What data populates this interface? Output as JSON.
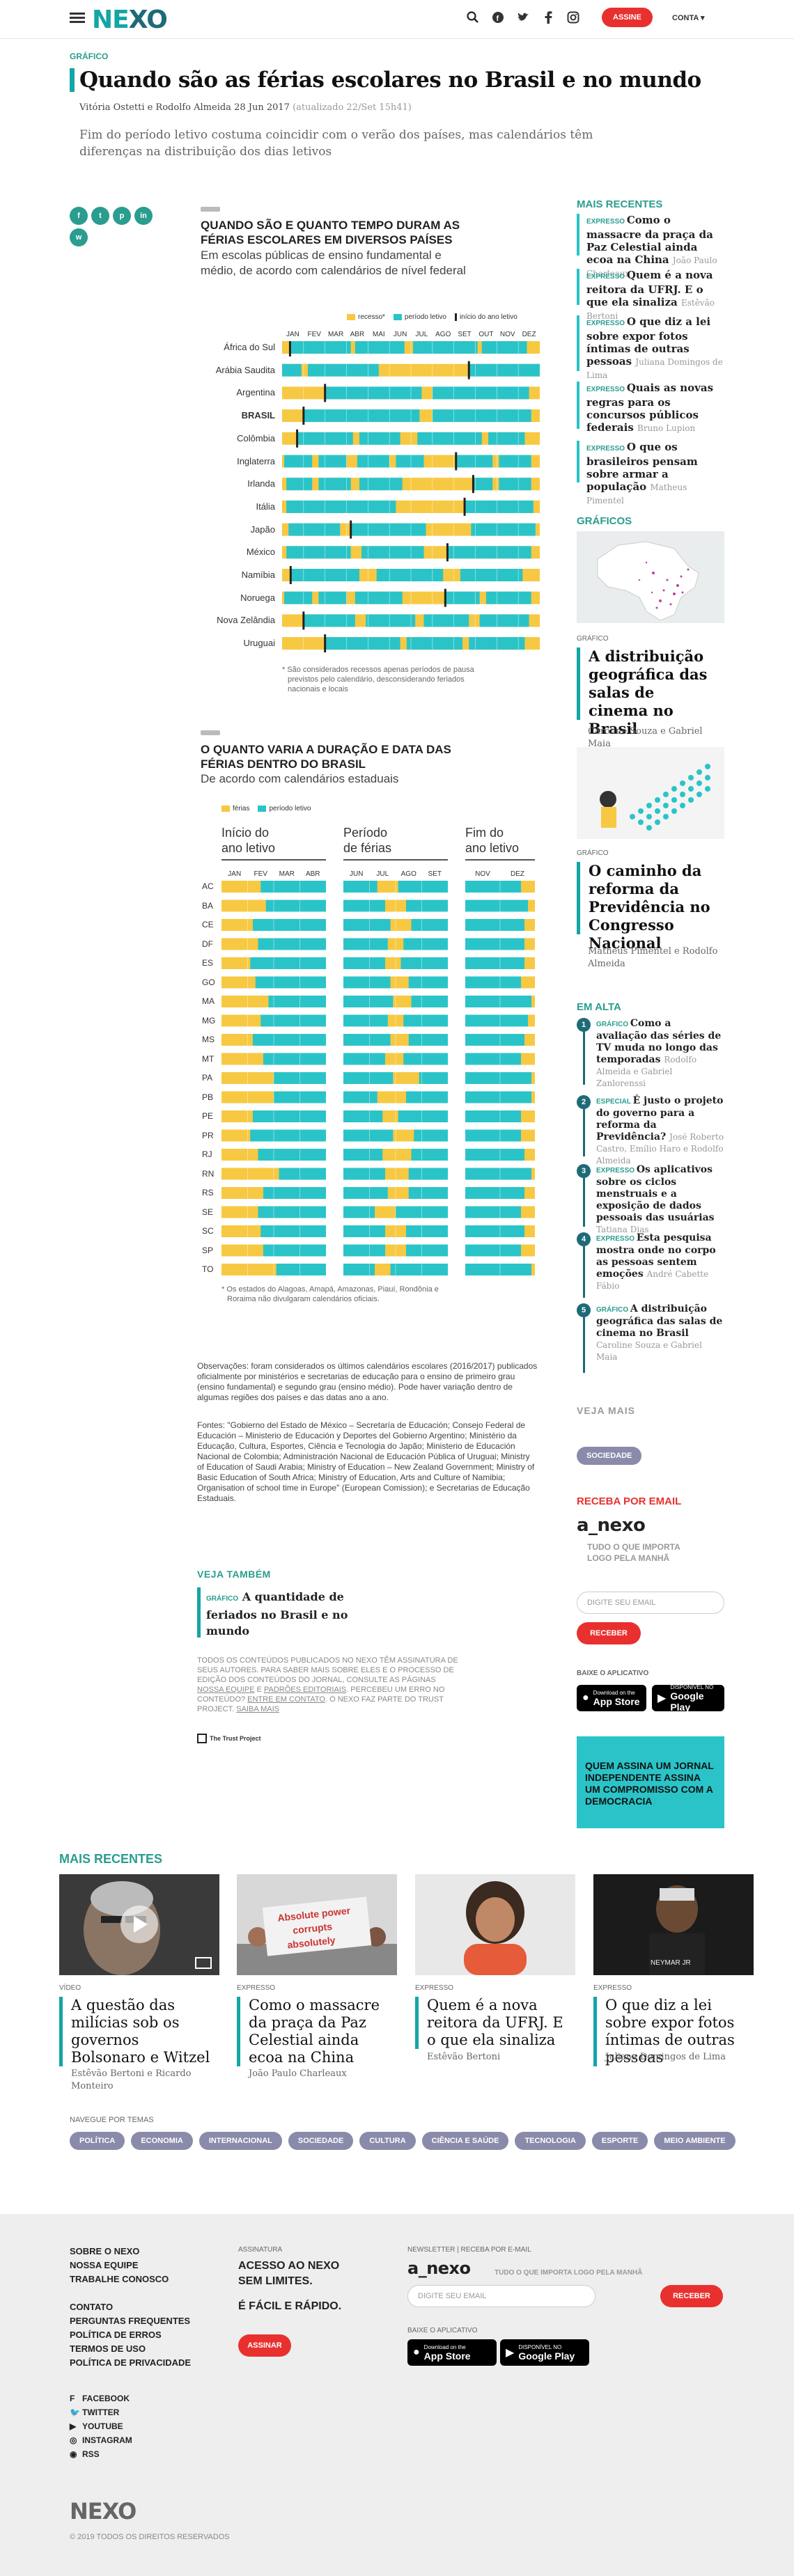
{
  "header": {
    "logo_left": "NE",
    "logo_right": "XO",
    "assine": "ASSINE",
    "conta": "CONTA",
    "icons": [
      "search-icon",
      "facebook-icon",
      "twitter-icon",
      "facebook-f-icon",
      "instagram-icon"
    ]
  },
  "article": {
    "kicker": "GRÁFICO",
    "title": "Quando são as férias escolares no Brasil e no mundo",
    "byline": "Vitória Ostetti e Rodolfo Almeida",
    "date": "28 Jun 2017",
    "updated": "(atualizado 22/Set 15h41)",
    "lead": "Fim do período letivo costuma coincidir com o verão dos países, mas calendários têm diferenças na distribuição dos dias letivos"
  },
  "share": [
    "f",
    "t",
    "p",
    "in",
    "w"
  ],
  "chart1": {
    "title_l1": "QUANDO SÃO E QUANTO TEMPO DURAM AS",
    "title_l2": "FÉRIAS ESCOLARES EM DIVERSOS PAÍSES",
    "sub_l1": "Em escolas públicas de ensino fundamental e",
    "sub_l2": "médio, de acordo com calendários de nível federal",
    "legend": [
      "recesso*",
      "período letivo",
      "início do ano letivo"
    ],
    "months": [
      "JAN",
      "FEV",
      "MAR",
      "ABR",
      "MAI",
      "JUN",
      "JUL",
      "AGO",
      "SET",
      "OUT",
      "NOV",
      "DEZ"
    ],
    "footnote_l1": "* São considerados recessos apenas períodos de pausa",
    "footnote_l2": "previstos pelo calendário, desconsiderando feriados",
    "footnote_l3": "nacionais e locais"
  },
  "chart_data": [
    {
      "type": "table",
      "title": "QUANDO SÃO E QUANTO TEMPO DURAM AS FÉRIAS ESCOLARES EM DIVERSOS PAÍSES",
      "subtitle": "Em escolas públicas de ensino fundamental e médio, de acordo com calendários de nível federal",
      "x": [
        "JAN",
        "FEV",
        "MAR",
        "ABR",
        "MAI",
        "JUN",
        "JUL",
        "AGO",
        "SET",
        "OUT",
        "NOV",
        "DEZ"
      ],
      "rows": [
        {
          "name": "África do Sul",
          "letivo": [
            [
              0.37,
              3.2
            ],
            [
              3.4,
              5.7
            ],
            [
              6.1,
              9.1
            ],
            [
              9.3,
              11.4
            ]
          ],
          "inicio": 0.37
        },
        {
          "name": "Arábia Saudita",
          "letivo": [
            [
              0,
              0.9
            ],
            [
              1.2,
              4.5
            ],
            [
              8.7,
              12
            ]
          ],
          "inicio": 8.7
        },
        {
          "name": "Argentina",
          "letivo": [
            [
              2.0,
              6.5
            ],
            [
              7.0,
              11.5
            ]
          ],
          "inicio": 2.0
        },
        {
          "name": "BRASIL",
          "letivo": [
            [
              1.0,
              6.4
            ],
            [
              7.0,
              11.6
            ]
          ],
          "inicio": 1.0
        },
        {
          "name": "Colômbia",
          "letivo": [
            [
              0.7,
              3.3
            ],
            [
              3.6,
              5.5
            ],
            [
              6.3,
              9.3
            ],
            [
              9.6,
              11.3
            ]
          ],
          "inicio": 0.7
        },
        {
          "name": "Inglaterra",
          "letivo": [
            [
              0.1,
              1.4
            ],
            [
              1.7,
              3.0
            ],
            [
              3.5,
              5.0
            ],
            [
              5.3,
              6.6
            ],
            [
              8.1,
              9.8
            ],
            [
              10.1,
              11.6
            ]
          ],
          "inicio": 8.1
        },
        {
          "name": "Irlanda",
          "letivo": [
            [
              0.2,
              1.4
            ],
            [
              1.7,
              3.2
            ],
            [
              3.6,
              5.6
            ],
            [
              8.9,
              9.8
            ],
            [
              10.1,
              11.6
            ]
          ],
          "inicio": 8.9
        },
        {
          "name": "Itália",
          "letivo": [
            [
              0.2,
              5.3
            ],
            [
              8.5,
              11.7
            ]
          ],
          "inicio": 8.5
        },
        {
          "name": "Japão",
          "letivo": [
            [
              0.3,
              2.7
            ],
            [
              3.2,
              6.7
            ],
            [
              8.8,
              11.8
            ]
          ],
          "inicio": 3.2
        },
        {
          "name": "México",
          "letivo": [
            [
              0.2,
              3.2
            ],
            [
              3.7,
              6.6
            ],
            [
              7.7,
              11.6
            ]
          ],
          "inicio": 7.7
        },
        {
          "name": "Namíbia",
          "letivo": [
            [
              0.4,
              3.6
            ],
            [
              4.4,
              7.5
            ],
            [
              8.3,
              11.2
            ]
          ],
          "inicio": 0.4
        },
        {
          "name": "Noruega",
          "letivo": [
            [
              0.1,
              1.4
            ],
            [
              1.7,
              3.0
            ],
            [
              3.4,
              5.6
            ],
            [
              7.6,
              9.2
            ],
            [
              9.5,
              11.6
            ]
          ],
          "inicio": 7.6
        },
        {
          "name": "Nova Zelândia",
          "letivo": [
            [
              1.0,
              3.4
            ],
            [
              3.9,
              6.2
            ],
            [
              6.6,
              8.7
            ],
            [
              9.2,
              11.5
            ]
          ],
          "inicio": 1.0
        },
        {
          "name": "Uruguai",
          "letivo": [
            [
              2.0,
              5.5
            ],
            [
              5.8,
              8.4
            ],
            [
              8.7,
              11.3
            ]
          ],
          "inicio": 2.0
        }
      ]
    },
    {
      "type": "table",
      "title": "O QUANTO VARIA A DURAÇÃO E DATA DAS FÉRIAS DENTRO DO BRASIL",
      "subtitle": "De acordo com calendários estaduais",
      "states": [
        "AC",
        "BA",
        "CE",
        "DF",
        "ES",
        "GO",
        "MA",
        "MG",
        "MS",
        "MT",
        "PA",
        "PB",
        "PE",
        "PR",
        "RJ",
        "RN",
        "RS",
        "SE",
        "SC",
        "SP",
        "TO"
      ],
      "inicio_start": [
        1.5,
        1.7,
        1.2,
        1.4,
        1.1,
        1.3,
        1.8,
        1.5,
        1.2,
        1.6,
        2.0,
        2.0,
        1.2,
        1.1,
        1.4,
        2.2,
        1.6,
        1.4,
        1.5,
        1.6,
        2.1
      ],
      "ferias_jul": [
        [
          6.3,
          7.1
        ],
        [
          6.6,
          7.4
        ],
        [
          6.8,
          7.6
        ],
        [
          6.7,
          7.3
        ],
        [
          6.6,
          7.2
        ],
        [
          6.8,
          7.5
        ],
        [
          6.9,
          7.6
        ],
        [
          6.7,
          7.3
        ],
        [
          6.8,
          7.5
        ],
        [
          6.6,
          7.3
        ],
        [
          6.9,
          7.9
        ],
        [
          6.3,
          7.4
        ],
        [
          6.5,
          7.1
        ],
        [
          6.9,
          7.7
        ],
        [
          6.5,
          7.6
        ],
        [
          6.6,
          7.5
        ],
        [
          6.7,
          7.5
        ],
        [
          6.2,
          7.0
        ],
        [
          6.6,
          7.4
        ],
        [
          6.6,
          7.4
        ],
        [
          6.2,
          6.8
        ]
      ],
      "fim": [
        11.6,
        11.8,
        11.7,
        11.7,
        11.7,
        11.6,
        11.9,
        11.8,
        11.7,
        11.6,
        11.9,
        11.9,
        11.6,
        11.6,
        11.7,
        11.9,
        11.7,
        11.6,
        11.7,
        11.6,
        11.9
      ]
    }
  ],
  "chart2": {
    "title_l1": "O QUANTO VARIA A DURAÇÃO E DATA DAS",
    "title_l2": "FÉRIAS DENTRO DO BRASIL",
    "sub": "De acordo com calendários estaduais",
    "legend": [
      "férias",
      "período letivo"
    ],
    "col1_l1": "Início do",
    "col1_l2": "ano letivo",
    "col2_l1": "Período",
    "col2_l2": "de férias",
    "col3_l1": "Fim do",
    "col3_l2": "ano letivo",
    "m1": [
      "JAN",
      "FEV",
      "MAR",
      "ABR"
    ],
    "m2": [
      "JUN",
      "JUL",
      "AGO",
      "SET"
    ],
    "m3": [
      "NOV",
      "DEZ"
    ],
    "footnote_l1": "* Os estados do Alagoas, Amapá, Amazonas, Piauí, Rondônia e",
    "footnote_l2": "Roraima não divulgaram calendários oficiais."
  },
  "notes": {
    "obs": "Observações: foram considerados os últimos calendários escolares (2016/2017) publicados oficialmente por ministérios e secretarias de educação para o ensino de primeiro grau (ensino fundamental) e segundo grau (ensino médio). Pode haver variação dentro de algumas regiões dos países e das datas ano a ano.",
    "fontes": "Fontes: \"Gobierno del Estado de México – Secretaría de Educación; Consejo Federal de Educación – Ministerio de Educación y Deportes del Gobierno Argentino; Ministério da Educação, Cultura, Esportes, Ciência e Tecnologia do Japão; Ministerio de Educación Nacional de Colombia; Administración Nacional de Educación Pública of Uruguai; Ministry of Education of Saudi Arabia; Ministry of Education – New Zealand Government; Ministry of Basic Education of South Africa; Ministry of Education, Arts and Culture of Namibia; Organisation of school time in Europe\" (European Comission); e Secretarias de Educação Estaduais."
  },
  "veja": {
    "title": "VEJA TAMBÉM",
    "tag": "GRÁFICO",
    "text": "A quantidade de feriados no Brasil e no mundo"
  },
  "legal": {
    "text": "TODOS OS CONTEÚDOS PUBLICADOS NO NEXO TÊM ASSINATURA DE SEUS AUTORES. PARA SABER MAIS SOBRE ELES E O PROCESSO DE EDIÇÃO DOS CONTEÚDOS DO JORNAL, CONSULTE AS PÁGINAS",
    "link1": "NOSSA EQUIPE",
    "e": "E",
    "link2": "PADRÕES EDITORIAIS",
    "text2": ". PERCEBEU UM ERRO NO CONTEÚDO?",
    "link3": "ENTRE EM CONTATO",
    "text3": ". O NEXO FAZ PARTE DO TRUST PROJECT.",
    "link4": "SAIBA MAIS",
    "trust": "The Trust Project"
  },
  "sidebar": {
    "mr_title": "MAIS RECENTES",
    "mr": [
      {
        "tag": "EXPRESSO",
        "t": "Como o massacre da praça da Paz Celestial ainda ecoa na China",
        "a": "João Paulo Charleaux"
      },
      {
        "tag": "EXPRESSO",
        "t": "Quem é a nova reitora da UFRJ. E o que ela sinaliza",
        "a": "Estêvão Bertoni"
      },
      {
        "tag": "EXPRESSO",
        "t": "O que diz a lei sobre expor fotos íntimas de outras pessoas",
        "a": "Juliana Domingos de Lima"
      },
      {
        "tag": "EXPRESSO",
        "t": "Quais as novas regras para os concursos públicos federais",
        "a": "Bruno Lupion"
      },
      {
        "tag": "EXPRESSO",
        "t": "O que os brasileiros pensam sobre armar a população",
        "a": "Matheus Pimentel"
      }
    ],
    "graf_title": "GRÁFICOS",
    "graf": [
      {
        "tag": "GRÁFICO",
        "t": "A distribuição geográfica das salas de cinema no Brasil",
        "a": "Caroline Souza e Gabriel Maia"
      },
      {
        "tag": "GRÁFICO",
        "t": "O caminho da reforma da Previdência no Congresso Nacional",
        "a": "Matheus Pimentel e Rodolfo Almeida"
      }
    ],
    "ea_title": "EM ALTA",
    "ea": [
      {
        "n": "1",
        "tag": "GRÁFICO",
        "t": "Como a avaliação das séries de TV muda no longo das temporadas",
        "a": "Rodolfo Almeida e Gabriel Zanlorenssi"
      },
      {
        "n": "2",
        "tag": "ESPECIAL",
        "t": "É justo o projeto do governo para a reforma da Previdência?",
        "a": "José Roberto Castro, Emílio Haro e Rodolfo Almeida"
      },
      {
        "n": "3",
        "tag": "EXPRESSO",
        "t": "Os aplicativos sobre os ciclos menstruais e a exposição de dados pessoais das usuárias",
        "a": "Tatiana Dias"
      },
      {
        "n": "4",
        "tag": "EXPRESSO",
        "t": "Esta pesquisa mostra onde no corpo as pessoas sentem emoções",
        "a": "André Cabette Fábio"
      },
      {
        "n": "5",
        "tag": "GRÁFICO",
        "t": "A distribuição geográfica das salas de cinema no Brasil",
        "a": "Caroline Souza e Gabriel Maia"
      }
    ],
    "vm_title": "VEJA MAIS",
    "vm_pill": "SOCIEDADE",
    "rpe_title": "RECEBA POR EMAIL",
    "anexo": "a_nexo",
    "anexo_tag_l1": "TUDO O QUE IMPORTA",
    "anexo_tag_l2": "LOGO PELA MANHÃ",
    "email_ph": "DIGITE SEU EMAIL",
    "receber": "RECEBER",
    "baixe": "BAIXE O APLICATIVO",
    "appstore_small": "Download on the",
    "appstore": "App Store",
    "gplay_small": "DISPONÍVEL NO",
    "gplay": "Google Play",
    "promo": "QUEM ASSINA UM JORNAL INDEPENDENTE ASSINA UM COMPROMISSO COM A DEMOCRACIA"
  },
  "recent": {
    "title": "MAIS RECENTES",
    "cards": [
      {
        "tag": "VÍDEO",
        "t": "A questão das milícias sob os governos Bolsonaro e Witzel",
        "a": "Estêvão Bertoni e Ricardo Monteiro"
      },
      {
        "tag": "EXPRESSO",
        "t": "Como o massacre da praça da Paz Celestial ainda ecoa na China",
        "a": "João Paulo Charleaux"
      },
      {
        "tag": "EXPRESSO",
        "t": "Quem é a nova reitora da UFRJ. E o que ela sinaliza",
        "a": "Estêvão Bertoni"
      },
      {
        "tag": "EXPRESSO",
        "t": "O que diz a lei sobre expor fotos íntimas de outras pessoas",
        "a": "Juliana Domingos de Lima"
      }
    ],
    "navegue": "NAVEGUE POR TEMAS",
    "temas": [
      "POLÍTICA",
      "ECONOMIA",
      "INTERNACIONAL",
      "SOCIEDADE",
      "CULTURA",
      "CIÊNCIA E SAÚDE",
      "TECNOLOGIA",
      "ESPORTE",
      "MEIO AMBIENTE"
    ],
    "sign1": "Absolute power",
    "sign2": "corrupts",
    "sign3": "absolutely",
    "jersey": "NEYMAR JR"
  },
  "footer": {
    "links1": [
      "SOBRE O NEXO",
      "NOSSA EQUIPE",
      "TRABALHE CONOSCO"
    ],
    "links2": [
      "CONTATO",
      "PERGUNTAS FREQUENTES",
      "POLÍTICA DE ERROS",
      "TERMOS DE USO",
      "POLÍTICA DE PRIVACIDADE"
    ],
    "social": [
      "FACEBOOK",
      "TWITTER",
      "YOUTUBE",
      "INSTAGRAM",
      "RSS"
    ],
    "assinatura": "ASSINATURA",
    "big_l1": "ACESSO AO NEXO",
    "big_l2": "SEM LIMITES.",
    "big_l3": "É FÁCIL E RÁPIDO.",
    "assinar": "ASSINAR",
    "newsletter": "NEWSLETTER | RECEBA POR E-MAIL",
    "anexo": "a_nexo",
    "anexo_tag": "TUDO O QUE IMPORTA LOGO PELA MANHÃ",
    "email_ph": "DIGITE SEU EMAIL",
    "receber": "RECEBER",
    "baixe": "BAIXE O APLICATIVO",
    "logo": "NEXO",
    "copy": "© 2019 TODOS OS DIREITOS RESERVADOS"
  },
  "colors": {
    "yellow": "#f7c842",
    "teal": "#2ac4c8",
    "accent": "#14a5a5",
    "red": "#e8312f"
  }
}
